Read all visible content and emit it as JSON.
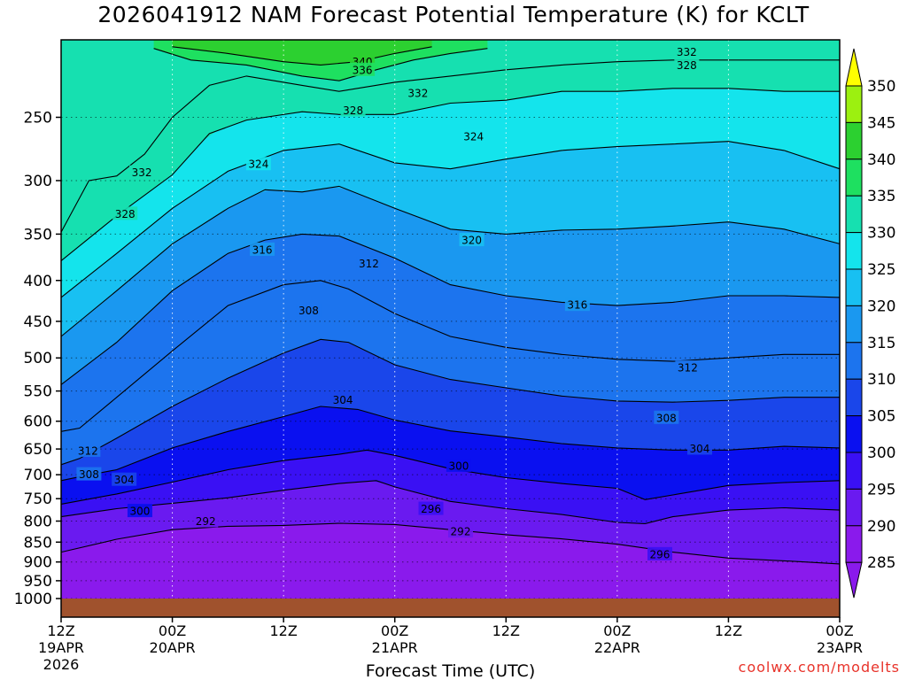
{
  "title": "2026041912 NAM Forecast Potential Temperature (K) for KCLT",
  "credit": "coolwx.com/modelts",
  "chart_data": {
    "type": "contour",
    "xlabel": "Forecast Time (UTC)",
    "ylabel": "",
    "y_scale": "log (pressure)",
    "y_ticks": [
      250,
      300,
      350,
      400,
      450,
      500,
      550,
      600,
      650,
      700,
      750,
      800,
      850,
      900,
      950,
      1000
    ],
    "ylim": [
      1000,
      200
    ],
    "x_ticks": [
      {
        "hour": 0,
        "label": "12Z",
        "sub": "19APR",
        "sub2": "2026"
      },
      {
        "hour": 12,
        "label": "00Z",
        "sub": "20APR",
        "sub2": ""
      },
      {
        "hour": 24,
        "label": "12Z",
        "sub": "",
        "sub2": ""
      },
      {
        "hour": 36,
        "label": "00Z",
        "sub": "21APR",
        "sub2": ""
      },
      {
        "hour": 48,
        "label": "12Z",
        "sub": "",
        "sub2": ""
      },
      {
        "hour": 60,
        "label": "00Z",
        "sub": "22APR",
        "sub2": ""
      },
      {
        "hour": 72,
        "label": "12Z",
        "sub": "",
        "sub2": ""
      },
      {
        "hour": 84,
        "label": "00Z",
        "sub": "23APR",
        "sub2": ""
      }
    ],
    "xlim": [
      0,
      84
    ],
    "grid": true,
    "colorbar": {
      "levels": [
        285,
        290,
        295,
        300,
        305,
        310,
        315,
        320,
        325,
        330,
        335,
        340,
        345,
        350
      ],
      "colors": [
        "#8a1aec",
        "#6a1af0",
        "#3a10f4",
        "#0a10f0",
        "#1a46ea",
        "#1c74ee",
        "#1a98f0",
        "#18c0f2",
        "#14e4ec",
        "#16e0b0",
        "#1ee060",
        "#2cd030",
        "#9cf010",
        "#ffff00"
      ],
      "placement": "right"
    },
    "contour_lines": [
      {
        "theta": 292,
        "points": [
          [
            0,
            875
          ],
          [
            6,
            843
          ],
          [
            12,
            820
          ],
          [
            18,
            812
          ],
          [
            24,
            810
          ],
          [
            30,
            805
          ],
          [
            36,
            808
          ],
          [
            42,
            820
          ],
          [
            48,
            832
          ],
          [
            54,
            842
          ],
          [
            60,
            855
          ],
          [
            66,
            875
          ],
          [
            72,
            890
          ],
          [
            78,
            897
          ],
          [
            84,
            905
          ]
        ]
      },
      {
        "theta": 296,
        "points": [
          [
            0,
            790
          ],
          [
            6,
            772
          ],
          [
            12,
            760
          ],
          [
            18,
            748
          ],
          [
            24,
            732
          ],
          [
            30,
            718
          ],
          [
            34,
            712
          ],
          [
            36,
            725
          ],
          [
            42,
            756
          ],
          [
            48,
            772
          ],
          [
            54,
            785
          ],
          [
            60,
            803
          ],
          [
            63,
            806
          ],
          [
            66,
            790
          ],
          [
            72,
            775
          ],
          [
            78,
            770
          ],
          [
            84,
            775
          ]
        ]
      },
      {
        "theta": 300,
        "points": [
          [
            0,
            762
          ],
          [
            6,
            740
          ],
          [
            12,
            715
          ],
          [
            18,
            690
          ],
          [
            24,
            672
          ],
          [
            30,
            660
          ],
          [
            33,
            652
          ],
          [
            36,
            662
          ],
          [
            42,
            688
          ],
          [
            48,
            706
          ],
          [
            54,
            718
          ],
          [
            60,
            728
          ],
          [
            63,
            752
          ],
          [
            66,
            742
          ],
          [
            72,
            722
          ],
          [
            78,
            716
          ],
          [
            84,
            712
          ]
        ]
      },
      {
        "theta": 304,
        "points": [
          [
            0,
            712
          ],
          [
            2,
            704
          ],
          [
            6,
            690
          ],
          [
            12,
            648
          ],
          [
            18,
            618
          ],
          [
            24,
            592
          ],
          [
            28,
            575
          ],
          [
            32,
            580
          ],
          [
            36,
            598
          ],
          [
            42,
            617
          ],
          [
            48,
            628
          ],
          [
            54,
            640
          ],
          [
            60,
            648
          ],
          [
            66,
            652
          ],
          [
            72,
            652
          ],
          [
            78,
            645
          ],
          [
            84,
            648
          ]
        ]
      },
      {
        "theta": 308,
        "points": [
          [
            0,
            680
          ],
          [
            2,
            668
          ],
          [
            6,
            630
          ],
          [
            12,
            575
          ],
          [
            18,
            530
          ],
          [
            24,
            493
          ],
          [
            28,
            474
          ],
          [
            31,
            478
          ],
          [
            36,
            510
          ],
          [
            42,
            532
          ],
          [
            48,
            545
          ],
          [
            54,
            558
          ],
          [
            60,
            566
          ],
          [
            66,
            568
          ],
          [
            72,
            565
          ],
          [
            78,
            560
          ],
          [
            84,
            560
          ]
        ]
      },
      {
        "theta": 312,
        "points": [
          [
            0,
            618
          ],
          [
            2,
            612
          ],
          [
            6,
            560
          ],
          [
            12,
            490
          ],
          [
            18,
            430
          ],
          [
            24,
            405
          ],
          [
            28,
            400
          ],
          [
            31,
            410
          ],
          [
            36,
            440
          ],
          [
            42,
            470
          ],
          [
            48,
            485
          ],
          [
            54,
            495
          ],
          [
            60,
            502
          ],
          [
            66,
            505
          ],
          [
            72,
            500
          ],
          [
            78,
            495
          ],
          [
            84,
            495
          ]
        ]
      },
      {
        "theta": 316,
        "points": [
          [
            0,
            540
          ],
          [
            6,
            478
          ],
          [
            12,
            412
          ],
          [
            18,
            370
          ],
          [
            22,
            356
          ],
          [
            26,
            350
          ],
          [
            30,
            352
          ],
          [
            36,
            375
          ],
          [
            42,
            405
          ],
          [
            48,
            418
          ],
          [
            54,
            426
          ],
          [
            60,
            430
          ],
          [
            66,
            426
          ],
          [
            72,
            418
          ],
          [
            78,
            418
          ],
          [
            84,
            420
          ]
        ]
      },
      {
        "theta": 320,
        "points": [
          [
            0,
            470
          ],
          [
            6,
            412
          ],
          [
            12,
            360
          ],
          [
            18,
            325
          ],
          [
            22,
            308
          ],
          [
            26,
            310
          ],
          [
            30,
            305
          ],
          [
            36,
            325
          ],
          [
            42,
            345
          ],
          [
            48,
            350
          ],
          [
            54,
            346
          ],
          [
            60,
            345
          ],
          [
            66,
            342
          ],
          [
            72,
            338
          ],
          [
            78,
            345
          ],
          [
            84,
            360
          ]
        ]
      },
      {
        "theta": 324,
        "points": [
          [
            0,
            420
          ],
          [
            6,
            370
          ],
          [
            12,
            325
          ],
          [
            18,
            292
          ],
          [
            24,
            275
          ],
          [
            30,
            270
          ],
          [
            36,
            285
          ],
          [
            42,
            290
          ],
          [
            48,
            282
          ],
          [
            54,
            275
          ],
          [
            60,
            272
          ],
          [
            66,
            270
          ],
          [
            72,
            268
          ],
          [
            78,
            275
          ],
          [
            84,
            290
          ]
        ]
      },
      {
        "theta": 328,
        "points": [
          [
            0,
            378
          ],
          [
            6,
            332
          ],
          [
            12,
            295
          ],
          [
            16,
            262
          ],
          [
            20,
            252
          ],
          [
            26,
            246
          ],
          [
            30,
            248
          ],
          [
            36,
            248
          ],
          [
            42,
            240
          ],
          [
            48,
            238
          ],
          [
            54,
            232
          ],
          [
            60,
            232
          ],
          [
            66,
            230
          ],
          [
            72,
            230
          ],
          [
            78,
            232
          ],
          [
            84,
            232
          ]
        ]
      },
      {
        "theta": 332,
        "points": [
          [
            0,
            348
          ],
          [
            3,
            300
          ],
          [
            6,
            296
          ],
          [
            9,
            278
          ],
          [
            12,
            250
          ],
          [
            16,
            228
          ],
          [
            20,
            222
          ],
          [
            26,
            228
          ],
          [
            30,
            232
          ],
          [
            36,
            226
          ],
          [
            42,
            222
          ],
          [
            48,
            218
          ],
          [
            54,
            215
          ],
          [
            60,
            213
          ],
          [
            66,
            212
          ],
          [
            72,
            212
          ],
          [
            78,
            212
          ],
          [
            84,
            212
          ]
        ]
      },
      {
        "theta": 336,
        "points": [
          [
            10,
            205
          ],
          [
            14,
            212
          ],
          [
            20,
            215
          ],
          [
            26,
            222
          ],
          [
            30,
            225
          ],
          [
            34,
            218
          ],
          [
            38,
            212
          ],
          [
            42,
            208
          ],
          [
            46,
            205
          ]
        ]
      },
      {
        "theta": 340,
        "points": [
          [
            12,
            204
          ],
          [
            18,
            208
          ],
          [
            24,
            213
          ],
          [
            28,
            215
          ],
          [
            32,
            213
          ],
          [
            36,
            208
          ],
          [
            40,
            204
          ]
        ]
      }
    ],
    "contour_labels": [
      {
        "text": "340",
        "x": 32.5,
        "p": 213
      },
      {
        "text": "336",
        "x": 32.5,
        "p": 218
      },
      {
        "text": "332",
        "x": 38.5,
        "p": 233
      },
      {
        "text": "332",
        "x": 67.5,
        "p": 207
      },
      {
        "text": "328",
        "x": 67.5,
        "p": 215
      },
      {
        "text": "328",
        "x": 31.5,
        "p": 245
      },
      {
        "text": "324",
        "x": 44.5,
        "p": 264
      },
      {
        "text": "324",
        "x": 21.3,
        "p": 286
      },
      {
        "text": "332",
        "x": 8.7,
        "p": 293
      },
      {
        "text": "328",
        "x": 6.9,
        "p": 330
      },
      {
        "text": "316",
        "x": 21.7,
        "p": 366
      },
      {
        "text": "320",
        "x": 44.3,
        "p": 356
      },
      {
        "text": "312",
        "x": 33.2,
        "p": 381
      },
      {
        "text": "316",
        "x": 55.7,
        "p": 429
      },
      {
        "text": "308",
        "x": 26.7,
        "p": 436
      },
      {
        "text": "312",
        "x": 67.6,
        "p": 514
      },
      {
        "text": "304",
        "x": 30.4,
        "p": 564
      },
      {
        "text": "308",
        "x": 65.3,
        "p": 594
      },
      {
        "text": "312",
        "x": 2.9,
        "p": 653
      },
      {
        "text": "304",
        "x": 68.9,
        "p": 649
      },
      {
        "text": "308",
        "x": 3.0,
        "p": 699
      },
      {
        "text": "300",
        "x": 42.9,
        "p": 682
      },
      {
        "text": "304",
        "x": 6.8,
        "p": 710
      },
      {
        "text": "296",
        "x": 39.9,
        "p": 772
      },
      {
        "text": "300",
        "x": 8.5,
        "p": 777
      },
      {
        "text": "292",
        "x": 15.6,
        "p": 800
      },
      {
        "text": "292",
        "x": 43.1,
        "p": 824
      },
      {
        "text": "296",
        "x": 64.6,
        "p": 880
      }
    ]
  }
}
